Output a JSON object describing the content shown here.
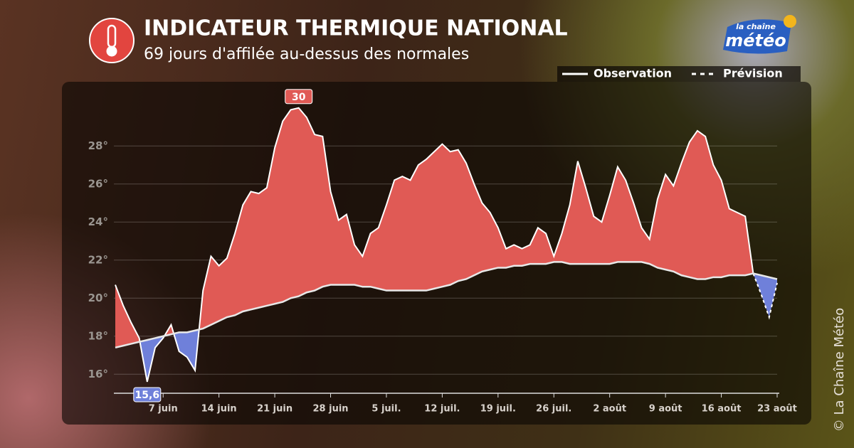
{
  "chart_data": {
    "type": "line",
    "title": "INDICATEUR THERMIQUE NATIONAL",
    "subtitle": "69 jours d'affilée au-dessus des normales",
    "credit": "© La Chaîne Météo",
    "logo": {
      "line1": "la chaîne",
      "line2": "météo"
    },
    "categories": [
      null,
      null,
      null,
      null,
      null,
      null,
      "7 juin",
      null,
      null,
      null,
      null,
      null,
      null,
      "14 juin",
      null,
      null,
      null,
      null,
      null,
      null,
      "21 juin",
      null,
      null,
      null,
      null,
      null,
      null,
      "28 juin",
      null,
      null,
      null,
      null,
      null,
      null,
      "5 juil.",
      null,
      null,
      null,
      null,
      null,
      null,
      "12 juil.",
      null,
      null,
      null,
      null,
      null,
      null,
      "19 juil.",
      null,
      null,
      null,
      null,
      null,
      null,
      "26 juil.",
      null,
      null,
      null,
      null,
      null,
      null,
      "2 août",
      null,
      null,
      null,
      null,
      null,
      null,
      "9 août",
      null,
      null,
      null,
      null,
      null,
      null,
      "16 août",
      null,
      null,
      null,
      null,
      null,
      null,
      "23 août"
    ],
    "series": [
      {
        "name": "Observation",
        "color": "#ffffff",
        "dash": false,
        "values": [
          20.7,
          19.6,
          18.7,
          17.9,
          15.6,
          17.4,
          17.9,
          18.6,
          17.2,
          16.9,
          16.2,
          20.4,
          22.2,
          21.7,
          22.1,
          23.4,
          24.9,
          25.6,
          25.5,
          25.8,
          27.9,
          29.3,
          29.9,
          30.0,
          29.5,
          28.6,
          28.5,
          25.6,
          24.1,
          24.4,
          22.8,
          22.2,
          23.4,
          23.7,
          24.9,
          26.2,
          26.4,
          26.2,
          27.0,
          27.3,
          27.7,
          28.1,
          27.7,
          27.8,
          27.1,
          26.0,
          25.0,
          24.5,
          23.7,
          22.6,
          22.8,
          22.6,
          22.8,
          23.7,
          23.4,
          22.2,
          23.4,
          24.9,
          27.2,
          25.8,
          24.3,
          24.0,
          25.4,
          26.9,
          26.2,
          25.0,
          23.7,
          23.1,
          25.2,
          26.5,
          25.9,
          27.1,
          28.2,
          28.8,
          28.5,
          27.0,
          26.2,
          24.7,
          24.5,
          24.3,
          21.3,
          null,
          null,
          null
        ],
        "value_labels": [
          null,
          null,
          null,
          null,
          "15,6",
          null,
          null,
          null,
          null,
          null,
          null,
          null,
          null,
          null,
          null,
          null,
          null,
          null,
          null,
          null,
          null,
          null,
          null,
          "30",
          null,
          null,
          null,
          null,
          null,
          null,
          null,
          null,
          null,
          null,
          null,
          null,
          null,
          null,
          null,
          null,
          null,
          null,
          null,
          null,
          null,
          null,
          null,
          null,
          null,
          null,
          null,
          null,
          null,
          null,
          null,
          null,
          null,
          null,
          null,
          null,
          null,
          null,
          null,
          null,
          null,
          null,
          null,
          null,
          null,
          null,
          null,
          null,
          null,
          null,
          null,
          null,
          null,
          null,
          null,
          null,
          null,
          null,
          null,
          null
        ]
      },
      {
        "name": "Prévision",
        "color": "#ffffff",
        "dash": true,
        "values": [
          null,
          null,
          null,
          null,
          null,
          null,
          null,
          null,
          null,
          null,
          null,
          null,
          null,
          null,
          null,
          null,
          null,
          null,
          null,
          null,
          null,
          null,
          null,
          null,
          null,
          null,
          null,
          null,
          null,
          null,
          null,
          null,
          null,
          null,
          null,
          null,
          null,
          null,
          null,
          null,
          null,
          null,
          null,
          null,
          null,
          null,
          null,
          null,
          null,
          null,
          null,
          null,
          null,
          null,
          null,
          null,
          null,
          null,
          null,
          null,
          null,
          null,
          null,
          null,
          null,
          null,
          null,
          null,
          null,
          null,
          null,
          null,
          null,
          null,
          null,
          null,
          null,
          null,
          null,
          null,
          21.3,
          20.2,
          19.0,
          20.8
        ]
      },
      {
        "color": "#e8e8e8",
        "dash": false,
        "normal": true,
        "values": [
          17.4,
          17.5,
          17.6,
          17.7,
          17.8,
          17.9,
          18.0,
          18.1,
          18.2,
          18.2,
          18.3,
          18.4,
          18.6,
          18.8,
          19.0,
          19.1,
          19.3,
          19.4,
          19.5,
          19.6,
          19.7,
          19.8,
          20.0,
          20.1,
          20.3,
          20.4,
          20.6,
          20.7,
          20.7,
          20.7,
          20.7,
          20.6,
          20.6,
          20.5,
          20.4,
          20.4,
          20.4,
          20.4,
          20.4,
          20.4,
          20.5,
          20.6,
          20.7,
          20.9,
          21.0,
          21.2,
          21.4,
          21.5,
          21.6,
          21.6,
          21.7,
          21.7,
          21.8,
          21.8,
          21.8,
          21.9,
          21.9,
          21.8,
          21.8,
          21.8,
          21.8,
          21.8,
          21.8,
          21.9,
          21.9,
          21.9,
          21.9,
          21.8,
          21.6,
          21.5,
          21.4,
          21.2,
          21.1,
          21.0,
          21.0,
          21.1,
          21.1,
          21.2,
          21.2,
          21.2,
          21.3,
          21.2,
          21.1,
          21.0
        ]
      }
    ],
    "above_color": "#e05a55",
    "below_color": "#6f80da",
    "ylim": [
      15,
      31
    ],
    "yticks": [
      {
        "value": 16,
        "label": "16°"
      },
      {
        "value": 18,
        "label": "18°"
      },
      {
        "value": 20,
        "label": "20°"
      },
      {
        "value": 22,
        "label": "22°"
      },
      {
        "value": 24,
        "label": "24°"
      },
      {
        "value": 26,
        "label": "26°"
      },
      {
        "value": 28,
        "label": "28°"
      }
    ],
    "grid": true
  }
}
